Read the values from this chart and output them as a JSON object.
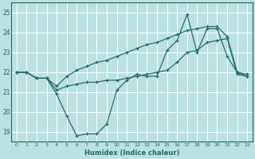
{
  "xlabel": "Humidex (Indice chaleur)",
  "ylim": [
    18.5,
    25.5
  ],
  "xlim": [
    -0.5,
    23.5
  ],
  "yticks": [
    19,
    20,
    21,
    22,
    23,
    24,
    25
  ],
  "xticks": [
    0,
    1,
    2,
    3,
    4,
    5,
    6,
    7,
    8,
    9,
    10,
    11,
    12,
    13,
    14,
    15,
    16,
    17,
    18,
    19,
    20,
    21,
    22,
    23
  ],
  "bg_color": "#bde0e0",
  "line_color": "#1a6b6b",
  "grid_color": "#ffffff",
  "line1_y": [
    22.0,
    22.0,
    21.7,
    21.7,
    20.9,
    19.8,
    18.8,
    18.9,
    18.9,
    19.4,
    21.1,
    21.6,
    21.9,
    21.8,
    21.8,
    23.1,
    23.6,
    24.9,
    23.0,
    24.2,
    24.2,
    22.8,
    22.0,
    21.9
  ],
  "line2_y": [
    22.0,
    22.0,
    21.7,
    21.7,
    21.1,
    21.3,
    21.4,
    21.5,
    21.5,
    21.6,
    21.6,
    21.7,
    21.8,
    21.9,
    22.0,
    22.1,
    22.5,
    23.0,
    23.1,
    23.5,
    23.6,
    23.7,
    21.9,
    21.8
  ],
  "line3_y": [
    22.0,
    22.0,
    21.7,
    21.7,
    21.3,
    21.8,
    22.1,
    22.3,
    22.5,
    22.6,
    22.8,
    23.0,
    23.2,
    23.4,
    23.5,
    23.7,
    23.9,
    24.1,
    24.2,
    24.3,
    24.3,
    23.8,
    22.0,
    21.8
  ]
}
